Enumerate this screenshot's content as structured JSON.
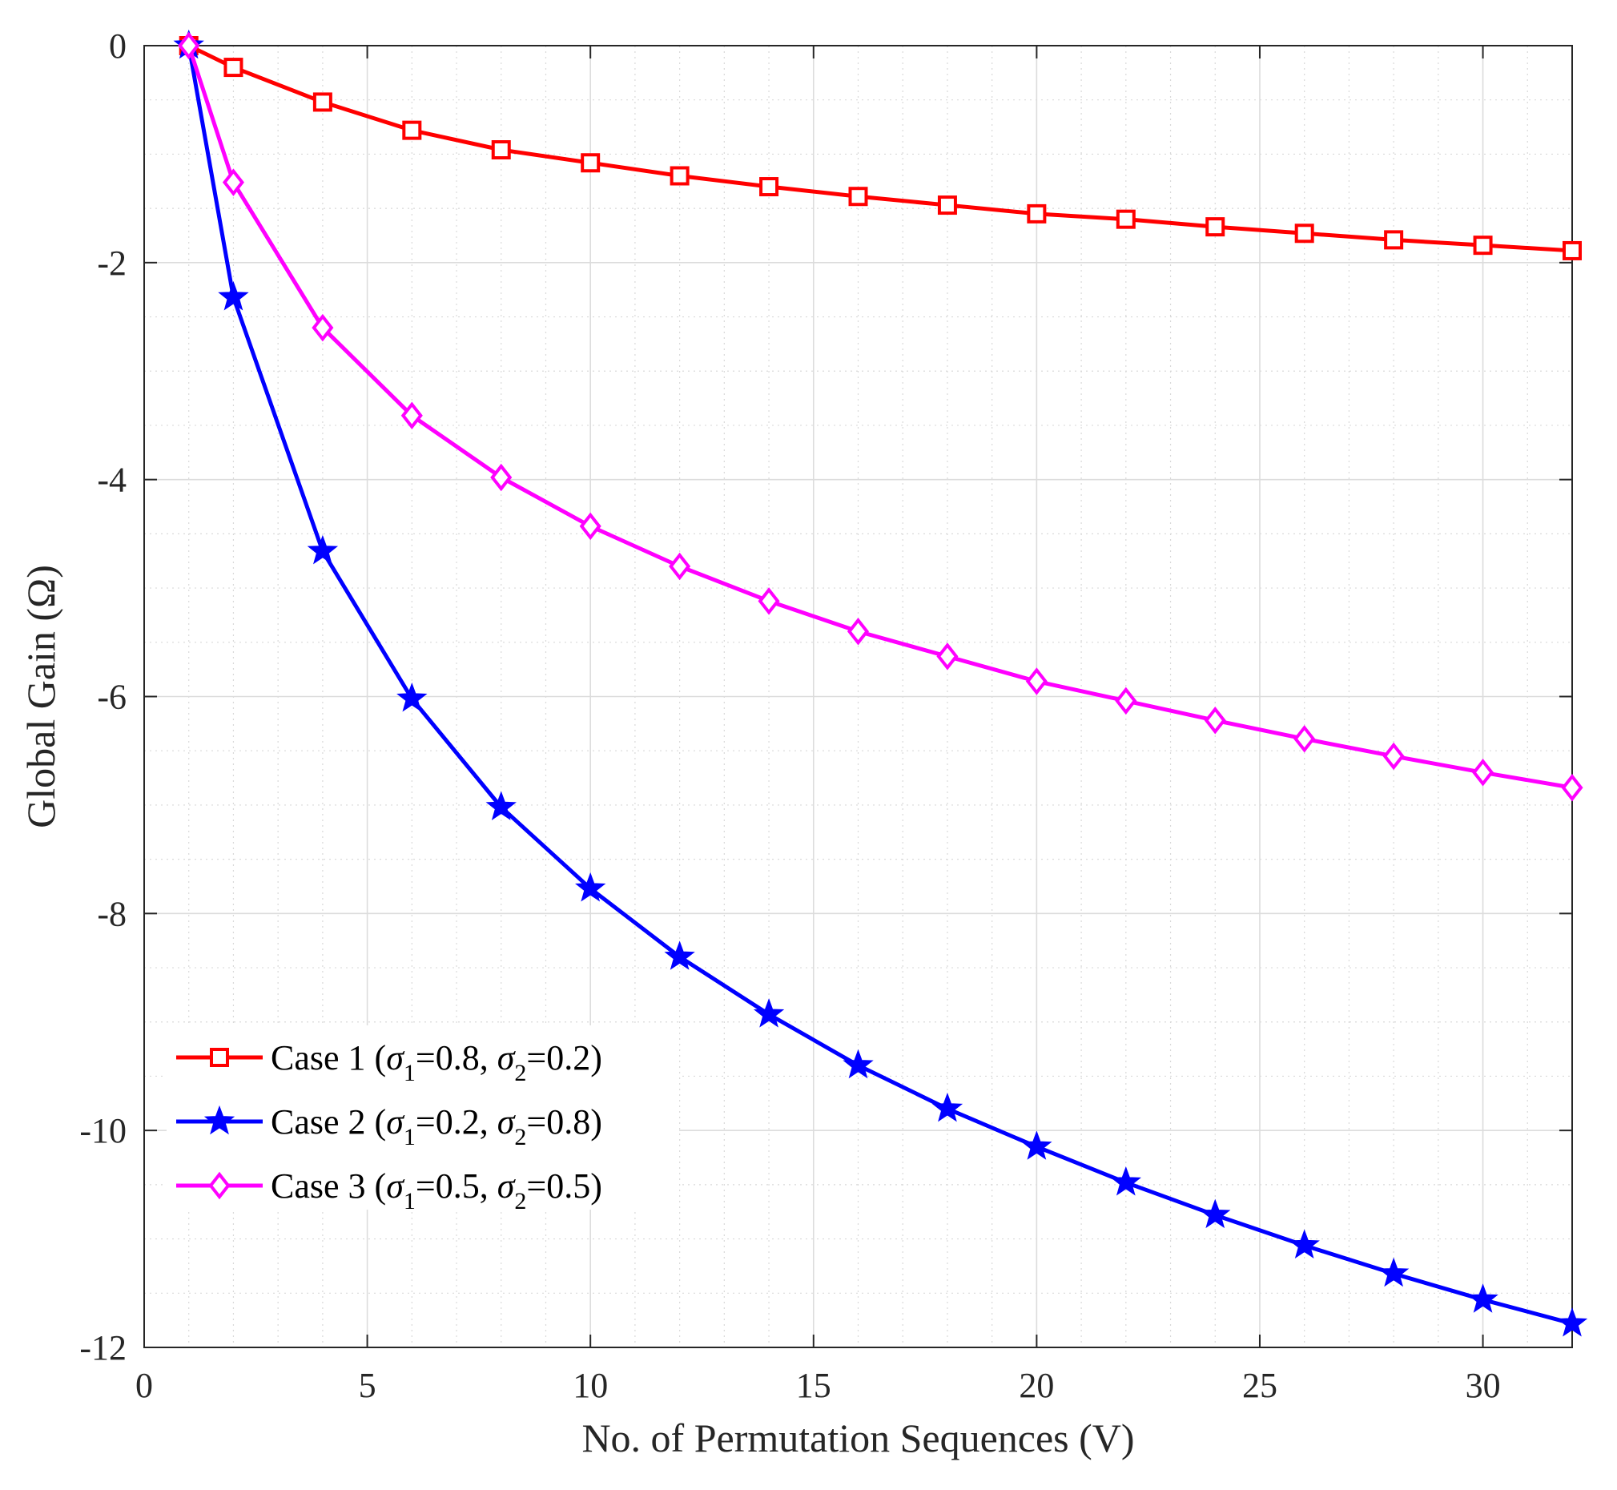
{
  "chart_data": {
    "type": "line",
    "title": "",
    "xlabel": "No. of Permutation Sequences (V)",
    "ylabel": "Global Gain (Ω)",
    "xlim": [
      0,
      32
    ],
    "ylim": [
      -12,
      0
    ],
    "xticks": [
      0,
      5,
      10,
      15,
      20,
      25,
      30
    ],
    "yticks": [
      0,
      -2,
      -4,
      -6,
      -8,
      -10,
      -12
    ],
    "xtick_labels": [
      "0",
      "5",
      "10",
      "15",
      "20",
      "25",
      "30"
    ],
    "ytick_labels": [
      "0",
      "-2",
      "-4",
      "-6",
      "-8",
      "-10",
      "-12"
    ],
    "grid": true,
    "minor_grid": true,
    "legend_position": "bottom-left",
    "x": [
      1,
      2,
      4,
      6,
      8,
      10,
      12,
      14,
      16,
      18,
      20,
      22,
      24,
      26,
      28,
      30,
      32
    ],
    "series": [
      {
        "name": "Case 1 (σ1=0.8, σ2=0.2)",
        "label_parts": {
          "prefix": "Case 1 (",
          "sym1": "σ",
          "sub1": "1",
          "val1": "=0.8, ",
          "sym2": "σ",
          "sub2": "2",
          "val2": "=0.2)"
        },
        "color": "#ff0000",
        "marker": "square",
        "values": [
          0,
          -0.2,
          -0.52,
          -0.78,
          -0.96,
          -1.08,
          -1.2,
          -1.3,
          -1.39,
          -1.47,
          -1.55,
          -1.6,
          -1.67,
          -1.73,
          -1.79,
          -1.84,
          -1.89
        ]
      },
      {
        "name": "Case 2 (σ1=0.2, σ2=0.8)",
        "label_parts": {
          "prefix": "Case 2 (",
          "sym1": "σ",
          "sub1": "1",
          "val1": "=0.2, ",
          "sym2": "σ",
          "sub2": "2",
          "val2": "=0.8)"
        },
        "color": "#0000ff",
        "marker": "star",
        "values": [
          0,
          -2.32,
          -4.66,
          -6.02,
          -7.02,
          -7.77,
          -8.4,
          -8.93,
          -9.4,
          -9.8,
          -10.15,
          -10.48,
          -10.78,
          -11.06,
          -11.32,
          -11.56,
          -11.78
        ]
      },
      {
        "name": "Case 3 (σ1=0.5, σ2=0.5)",
        "label_parts": {
          "prefix": "Case 3 (",
          "sym1": "σ",
          "sub1": "1",
          "val1": "=0.5, ",
          "sym2": "σ",
          "sub2": "2",
          "val2": "=0.5)"
        },
        "color": "#ff00ff",
        "marker": "diamond",
        "values": [
          0,
          -1.26,
          -2.6,
          -3.41,
          -3.98,
          -4.43,
          -4.8,
          -5.12,
          -5.4,
          -5.63,
          -5.86,
          -6.04,
          -6.22,
          -6.39,
          -6.55,
          -6.7,
          -6.84
        ]
      }
    ]
  }
}
